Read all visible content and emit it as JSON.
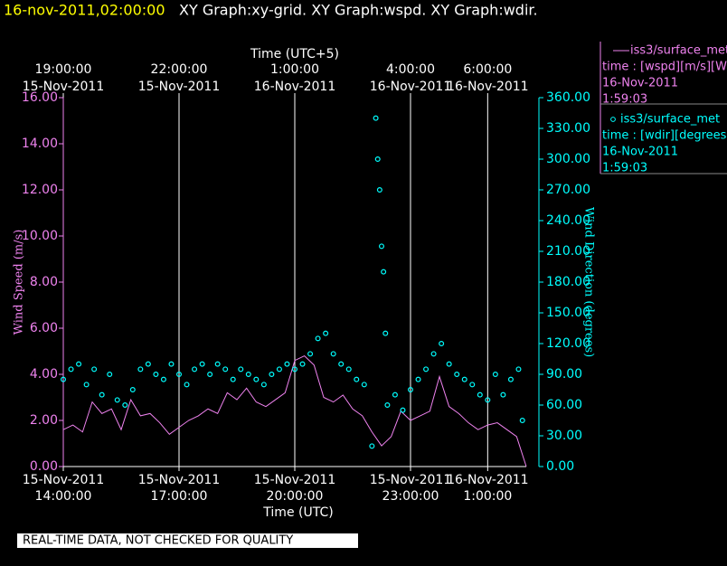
{
  "chart_data": {
    "type": "line+scatter",
    "title": "16-nov-2011,02:00:00",
    "subtitle": "XY Graph:xy-grid.  XY Graph:wspd.  XY Graph:wdir.",
    "annotation": "REAL-TIME DATA, NOT CHECKED FOR QUALITY",
    "xlabel": "Time (UTC)",
    "x2label": "Time (UTC+5)",
    "ylabel": "Wind Speed (m/s)",
    "y2label": "Wind Direction (degrees)",
    "xlim": [
      14,
      26
    ],
    "ylim": [
      0,
      16
    ],
    "y2lim": [
      0,
      360
    ],
    "grid": true,
    "xticks": [
      {
        "value": 14,
        "date": "15-Nov-2011",
        "label": "14:00:00"
      },
      {
        "value": 17,
        "date": "15-Nov-2011",
        "label": "17:00:00"
      },
      {
        "value": 20,
        "date": "15-Nov-2011",
        "label": "20:00:00"
      },
      {
        "value": 23,
        "date": "15-Nov-2011",
        "label": "23:00:00"
      },
      {
        "value": 25,
        "date": "16-Nov-2011",
        "label": "1:00:00"
      }
    ],
    "x2ticks": [
      {
        "value": 14,
        "date": "15-Nov-2011",
        "label": "19:00:00"
      },
      {
        "value": 17,
        "date": "15-Nov-2011",
        "label": "22:00:00"
      },
      {
        "value": 20,
        "date": "16-Nov-2011",
        "label": "1:00:00"
      },
      {
        "value": 23,
        "date": "16-Nov-2011",
        "label": "4:00:00"
      },
      {
        "value": 25,
        "date": "16-Nov-2011",
        "label": "6:00:00"
      }
    ],
    "yticks": [
      {
        "value": 0,
        "label": "0.00"
      },
      {
        "value": 2,
        "label": "2.00"
      },
      {
        "value": 4,
        "label": "4.00"
      },
      {
        "value": 6,
        "label": "6.00"
      },
      {
        "value": 8,
        "label": "8.00"
      },
      {
        "value": 10,
        "label": "10.00"
      },
      {
        "value": 12,
        "label": "12.00"
      },
      {
        "value": 14,
        "label": "14.00"
      },
      {
        "value": 16,
        "label": "16.00"
      }
    ],
    "y2ticks": [
      {
        "value": 0,
        "label": "0.00"
      },
      {
        "value": 30,
        "label": "30.00"
      },
      {
        "value": 60,
        "label": "60.00"
      },
      {
        "value": 90,
        "label": "90.00"
      },
      {
        "value": 120,
        "label": "120.00"
      },
      {
        "value": 150,
        "label": "150.00"
      },
      {
        "value": 180,
        "label": "180.00"
      },
      {
        "value": 210,
        "label": "210.00"
      },
      {
        "value": 240,
        "label": "240.00"
      },
      {
        "value": 270,
        "label": "270.00"
      },
      {
        "value": 300,
        "label": "300.00"
      },
      {
        "value": 330,
        "label": "330.00"
      },
      {
        "value": 360,
        "label": "360.00"
      }
    ],
    "series": [
      {
        "name": "iss3/surface_met",
        "type": "line",
        "color": "#ee82ee",
        "legend_lines": [
          "time : [wspd][m/s][Wind",
          "16-Nov-2011",
          "1:59:03"
        ],
        "x": [
          14,
          14.25,
          14.5,
          14.75,
          15,
          15.25,
          15.5,
          15.75,
          16,
          16.25,
          16.5,
          16.75,
          17,
          17.25,
          17.5,
          17.75,
          18,
          18.25,
          18.5,
          18.75,
          19,
          19.25,
          19.5,
          19.75,
          20,
          20.25,
          20.5,
          20.75,
          21,
          21.25,
          21.5,
          21.75,
          22,
          22.25,
          22.5,
          22.75,
          23,
          23.25,
          23.5,
          23.75,
          24,
          24.25,
          24.5,
          24.75,
          25,
          25.25,
          25.5,
          25.75,
          26
        ],
        "values": [
          1.6,
          1.8,
          1.5,
          2.8,
          2.3,
          2.5,
          1.6,
          2.9,
          2.2,
          2.3,
          1.9,
          1.4,
          1.7,
          2.0,
          2.2,
          2.5,
          2.3,
          3.2,
          2.9,
          3.4,
          2.8,
          2.6,
          2.9,
          3.2,
          4.6,
          4.8,
          4.4,
          3.0,
          2.8,
          3.1,
          2.5,
          2.2,
          1.5,
          0.9,
          1.3,
          2.4,
          2.0,
          2.2,
          2.4,
          3.9,
          2.6,
          2.3,
          1.9,
          1.6,
          1.8,
          1.9,
          1.6,
          1.3,
          0.0
        ]
      },
      {
        "name": "iss3/surface_met",
        "type": "scatter",
        "axis": "y2",
        "color": "#00ffff",
        "legend_lines": [
          "time : [wdir][degrees][V",
          "16-Nov-2011",
          "1:59:03"
        ],
        "x": [
          14,
          14.2,
          14.4,
          14.6,
          14.8,
          15,
          15.2,
          15.4,
          15.6,
          15.8,
          16,
          16.2,
          16.4,
          16.6,
          16.8,
          17,
          17.2,
          17.4,
          17.6,
          17.8,
          18,
          18.2,
          18.4,
          18.6,
          18.8,
          19,
          19.2,
          19.4,
          19.6,
          19.8,
          20,
          20.2,
          20.4,
          20.6,
          20.8,
          21,
          21.2,
          21.4,
          21.6,
          21.8,
          22,
          22.1,
          22.15,
          22.2,
          22.25,
          22.3,
          22.35,
          22.4,
          22.6,
          22.8,
          23,
          23.2,
          23.4,
          23.6,
          23.8,
          24,
          24.2,
          24.4,
          24.6,
          24.8,
          25,
          25.2,
          25.4,
          25.6,
          25.8,
          25.9
        ],
        "values": [
          85,
          95,
          100,
          80,
          95,
          70,
          90,
          65,
          60,
          75,
          95,
          100,
          90,
          85,
          100,
          90,
          80,
          95,
          100,
          90,
          100,
          95,
          85,
          95,
          90,
          85,
          80,
          90,
          95,
          100,
          95,
          100,
          110,
          125,
          130,
          110,
          100,
          95,
          85,
          80,
          20,
          340,
          300,
          270,
          215,
          190,
          130,
          60,
          70,
          55,
          75,
          85,
          95,
          110,
          120,
          100,
          90,
          85,
          80,
          70,
          65,
          90,
          70,
          85,
          95,
          45
        ]
      }
    ]
  }
}
